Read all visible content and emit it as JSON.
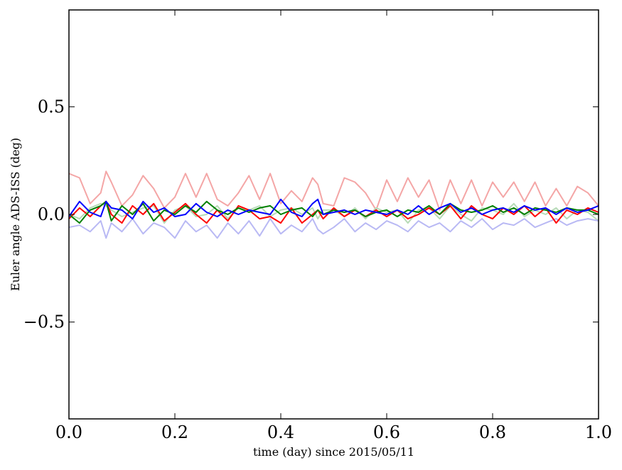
{
  "chart_data": {
    "type": "line",
    "title": "",
    "xlabel": "time (day) since 2015/05/11",
    "ylabel": "Euler angle ADS-ISS (deg)",
    "xlim": [
      0.0,
      1.0
    ],
    "ylim": [
      -0.95,
      0.95
    ],
    "xticks": [
      0.0,
      0.2,
      0.4,
      0.6,
      0.8,
      1.0
    ],
    "xtick_labels": [
      "0.0",
      "0.2",
      "0.4",
      "0.6",
      "0.8",
      "1.0"
    ],
    "yticks": [
      -0.5,
      0.0,
      0.5
    ],
    "ytick_labels": [
      "−0.5",
      "0.0",
      "0.5"
    ],
    "grid": false,
    "legend": "none",
    "x": [
      0.0,
      0.02,
      0.04,
      0.06,
      0.07,
      0.08,
      0.1,
      0.12,
      0.14,
      0.16,
      0.18,
      0.2,
      0.22,
      0.24,
      0.26,
      0.28,
      0.3,
      0.32,
      0.34,
      0.36,
      0.38,
      0.4,
      0.42,
      0.44,
      0.46,
      0.47,
      0.48,
      0.5,
      0.52,
      0.54,
      0.56,
      0.58,
      0.6,
      0.62,
      0.64,
      0.66,
      0.68,
      0.7,
      0.72,
      0.74,
      0.76,
      0.78,
      0.8,
      0.82,
      0.84,
      0.86,
      0.88,
      0.9,
      0.92,
      0.94,
      0.96,
      0.98,
      1.0
    ],
    "series": [
      {
        "color": "#f4a6a6",
        "values": [
          0.19,
          0.17,
          0.05,
          0.1,
          0.2,
          0.15,
          0.04,
          0.09,
          0.18,
          0.12,
          0.03,
          0.08,
          0.19,
          0.08,
          0.19,
          0.07,
          0.04,
          0.1,
          0.18,
          0.07,
          0.19,
          0.05,
          0.11,
          0.06,
          0.17,
          0.14,
          0.05,
          0.04,
          0.17,
          0.15,
          0.1,
          0.02,
          0.16,
          0.06,
          0.17,
          0.08,
          0.16,
          0.02,
          0.16,
          0.05,
          0.16,
          0.04,
          0.15,
          0.08,
          0.15,
          0.06,
          0.15,
          0.04,
          0.12,
          0.04,
          0.13,
          0.1,
          0.04
        ]
      },
      {
        "color": "#b7dbb7",
        "values": [
          0.0,
          -0.02,
          0.03,
          0.05,
          0.04,
          0.02,
          -0.01,
          0.01,
          0.03,
          0.04,
          -0.04,
          0.02,
          0.04,
          -0.01,
          0.0,
          0.04,
          -0.02,
          0.03,
          0.02,
          0.04,
          -0.01,
          0.02,
          0.03,
          0.0,
          0.03,
          -0.02,
          0.02,
          0.02,
          -0.01,
          0.03,
          -0.02,
          0.03,
          0.01,
          0.02,
          -0.04,
          0.02,
          0.03,
          -0.02,
          0.04,
          0.0,
          -0.03,
          0.03,
          0.02,
          0.0,
          0.05,
          -0.01,
          0.02,
          0.0,
          0.03,
          -0.02,
          0.02,
          0.01,
          -0.03
        ]
      },
      {
        "color": "#b9b9f4",
        "values": [
          -0.06,
          -0.05,
          -0.08,
          -0.03,
          -0.11,
          -0.04,
          -0.08,
          -0.02,
          -0.09,
          -0.04,
          -0.06,
          -0.11,
          -0.03,
          -0.08,
          -0.05,
          -0.11,
          -0.04,
          -0.09,
          -0.03,
          -0.1,
          -0.02,
          -0.09,
          -0.05,
          -0.08,
          -0.02,
          -0.07,
          -0.09,
          -0.06,
          -0.02,
          -0.08,
          -0.04,
          -0.07,
          -0.03,
          -0.05,
          -0.08,
          -0.03,
          -0.06,
          -0.04,
          -0.08,
          -0.03,
          -0.06,
          -0.02,
          -0.07,
          -0.04,
          -0.05,
          -0.02,
          -0.06,
          -0.04,
          -0.02,
          -0.05,
          -0.03,
          -0.02,
          -0.03
        ]
      },
      {
        "color": "#ff0000",
        "values": [
          -0.02,
          0.03,
          -0.01,
          0.04,
          0.06,
          0.0,
          -0.04,
          0.04,
          0.0,
          0.05,
          -0.03,
          0.01,
          0.05,
          0.0,
          -0.04,
          0.02,
          -0.03,
          0.04,
          0.02,
          -0.02,
          -0.01,
          -0.04,
          0.03,
          -0.04,
          0.0,
          0.02,
          -0.02,
          0.03,
          -0.01,
          0.02,
          -0.01,
          0.02,
          -0.01,
          0.02,
          -0.02,
          0.0,
          0.03,
          0.0,
          0.04,
          -0.02,
          0.04,
          0.0,
          -0.02,
          0.03,
          0.0,
          0.04,
          -0.01,
          0.03,
          -0.04,
          0.02,
          0.0,
          0.03,
          0.01
        ]
      },
      {
        "color": "#008000",
        "values": [
          0.0,
          -0.04,
          0.02,
          0.04,
          0.06,
          -0.03,
          0.04,
          0.0,
          0.05,
          -0.03,
          0.02,
          0.0,
          0.04,
          0.01,
          0.06,
          0.02,
          0.0,
          0.03,
          0.01,
          0.03,
          0.04,
          0.0,
          0.02,
          0.03,
          -0.01,
          0.02,
          0.0,
          0.02,
          0.01,
          0.02,
          -0.01,
          0.01,
          0.02,
          -0.01,
          0.02,
          0.01,
          0.04,
          0.0,
          0.05,
          0.02,
          0.01,
          0.02,
          0.04,
          0.01,
          0.03,
          0.0,
          0.03,
          0.02,
          0.01,
          0.03,
          0.02,
          0.02,
          0.0
        ]
      },
      {
        "color": "#0000ff",
        "values": [
          -0.01,
          0.06,
          0.01,
          -0.01,
          0.06,
          0.03,
          0.02,
          -0.02,
          0.06,
          0.01,
          0.03,
          -0.01,
          0.0,
          0.05,
          0.01,
          -0.01,
          0.02,
          0.0,
          0.02,
          0.01,
          0.0,
          0.07,
          0.01,
          -0.01,
          0.05,
          0.07,
          0.0,
          0.01,
          0.02,
          0.0,
          0.02,
          0.01,
          0.0,
          0.02,
          0.0,
          0.04,
          0.0,
          0.03,
          0.05,
          0.01,
          0.03,
          0.0,
          0.02,
          0.03,
          0.01,
          0.04,
          0.02,
          0.03,
          0.0,
          0.03,
          0.01,
          0.02,
          0.04
        ]
      }
    ]
  }
}
